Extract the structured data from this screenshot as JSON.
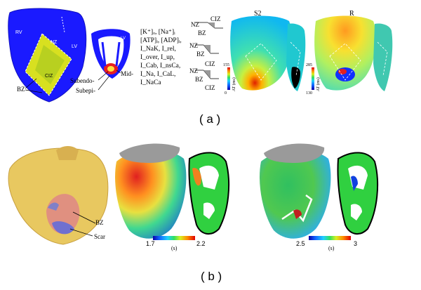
{
  "panel_a": {
    "caption": "( a )",
    "heart_labels": {
      "rv": "RV",
      "nz": "NZ",
      "lv": "LV",
      "ciz": "CIZ",
      "bz": "BZ",
      "lv_slice": "LV"
    },
    "layer_labels": {
      "subendo": "Subendo-",
      "mid": "Mid-",
      "subepi": "Subepi-"
    },
    "ion_lines": [
      "[K⁺]ₒ, [Na⁺]ᵢ",
      "[ATP]ᵢ, [ADP]ᵢ,",
      "I_NaK, I_rel,",
      "I_over, I_up,",
      "I_Cab, I_nsCa,",
      "I_Na, I_CaL,",
      "I_NaCa"
    ],
    "zone_diagram": {
      "nz": "NZ",
      "ciz": "CIZ",
      "bz": "BZ"
    },
    "s2": {
      "title": "S2",
      "scale_max": "155",
      "scale_min": "0",
      "unit": "AT (ms)"
    },
    "r": {
      "title": "R",
      "scale_max": "285",
      "scale_min": "130",
      "unit": "AT (ms)"
    }
  },
  "panel_b": {
    "caption": "( b )",
    "labels": {
      "bz": "BZ",
      "scar": "Scar"
    },
    "scale1": {
      "min": "1.7",
      "max": "2.2",
      "unit": "(s)"
    },
    "scale2": {
      "min": "2.5",
      "max": "3",
      "unit": "(s)"
    }
  }
}
